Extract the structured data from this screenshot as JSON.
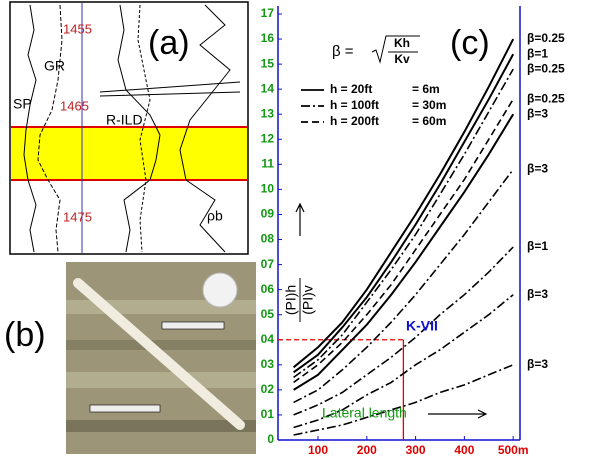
{
  "panels": {
    "a": {
      "label": "(a)",
      "depths": [
        "1455",
        "1465",
        "1475"
      ],
      "logs": [
        "GR",
        "SP",
        "R-ILD",
        "ρb"
      ]
    },
    "b": {
      "label": "(b)"
    }
  },
  "chart_data": {
    "type": "line",
    "panel_label": "(c)",
    "formula": {
      "lhs": "β =",
      "num": "Kh",
      "den": "Kv"
    },
    "legend": [
      {
        "label": "h = 20ft",
        "equiv": "= 6m",
        "dash": "solid"
      },
      {
        "label": "h = 100ft",
        "equiv": "= 30m",
        "dash": "dashdot"
      },
      {
        "label": "h = 200ft",
        "equiv": "= 60m",
        "dash": "dashed"
      }
    ],
    "ylabel": {
      "num": "(PI)h",
      "den": "(PI)v"
    },
    "xlabel": "Lateral length",
    "annotation": "K-VII",
    "marker": {
      "x": 275,
      "y": 4,
      "color": "#e00000"
    },
    "axis_color": "#1010d0",
    "ytick_color": "#129812",
    "xtick_color": "#e00000",
    "xlim": [
      18,
      514
    ],
    "ylim": [
      0,
      17
    ],
    "xticks": [
      100,
      200,
      300,
      400,
      {
        "value": 500,
        "label": "500m"
      }
    ],
    "yticks": [
      0,
      {
        "value": 1,
        "label": "01"
      },
      {
        "value": 2,
        "label": "02"
      },
      {
        "value": 3,
        "label": "03"
      },
      {
        "value": 4,
        "label": "04"
      },
      {
        "value": 5,
        "label": "05"
      },
      {
        "value": 6,
        "label": "06"
      },
      {
        "value": 7,
        "label": "07"
      },
      {
        "value": 8,
        "label": "08"
      },
      {
        "value": 9,
        "label": "09"
      },
      10,
      11,
      12,
      13,
      14,
      15,
      16,
      17
    ],
    "x": [
      50,
      100,
      150,
      200,
      250,
      300,
      350,
      400,
      450,
      500
    ],
    "series": [
      {
        "name": "β=0.25",
        "color": "#000000",
        "dash": "solid",
        "values": [
          2.9,
          3.7,
          4.7,
          6.0,
          7.5,
          9.0,
          10.6,
          12.3,
          14.1,
          16.0
        ]
      },
      {
        "name": "β=1",
        "color": "#000000",
        "dash": "solid",
        "values": [
          2.7,
          3.4,
          4.5,
          5.7,
          7.1,
          8.6,
          10.2,
          11.9,
          13.6,
          15.4
        ]
      },
      {
        "name": "β=0.25",
        "color": "#000000",
        "dash": "dashdot",
        "values": [
          2.5,
          3.2,
          4.2,
          5.5,
          6.8,
          8.2,
          9.8,
          11.4,
          13.1,
          14.8
        ]
      },
      {
        "name": "β=0.25",
        "color": "#000000",
        "dash": "dashed",
        "values": [
          2.3,
          3.0,
          3.9,
          5.0,
          6.2,
          7.6,
          9.0,
          10.4,
          12.0,
          13.6
        ]
      },
      {
        "name": "β=3",
        "color": "#000000",
        "dash": "solid",
        "values": [
          2.0,
          2.6,
          3.6,
          4.6,
          5.8,
          7.1,
          8.5,
          9.9,
          11.4,
          13.0
        ]
      },
      {
        "name": "β=3",
        "color": "#000000",
        "dash": "dashdot",
        "values": [
          1.5,
          2.0,
          2.8,
          3.7,
          4.7,
          5.8,
          7.0,
          8.2,
          9.5,
          10.8
        ]
      },
      {
        "name": "β=1",
        "color": "#000000",
        "dash": "dashdot",
        "values": [
          1.0,
          1.4,
          1.9,
          2.6,
          3.3,
          4.1,
          5.0,
          5.8,
          6.7,
          7.7
        ]
      },
      {
        "name": "β=3",
        "color": "#000000",
        "dash": "dashdot",
        "values": [
          0.5,
          0.8,
          1.2,
          1.8,
          2.3,
          3.0,
          3.6,
          4.3,
          5.0,
          5.8
        ]
      },
      {
        "name": "β=3",
        "color": "#000000",
        "dash": "dashdot",
        "values": [
          0.2,
          0.4,
          0.6,
          0.9,
          1.2,
          1.5,
          1.9,
          2.2,
          2.6,
          3.0
        ]
      }
    ]
  }
}
